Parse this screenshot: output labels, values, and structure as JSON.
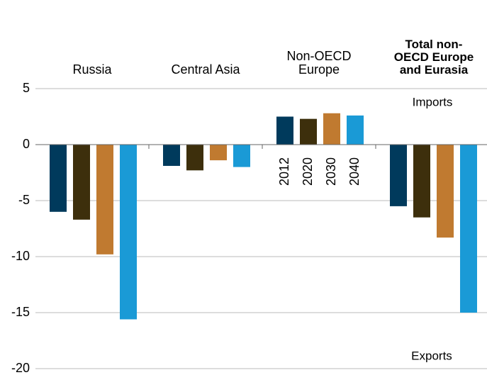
{
  "chart_data": {
    "type": "bar",
    "categories": [
      "Russia",
      "Central Asia",
      "Non-OECD Europe",
      "Total non-OECD Europe and Eurasia"
    ],
    "series": [
      {
        "name": "2012",
        "color": "#003a5c",
        "values": [
          -6.0,
          -1.9,
          2.5,
          -5.5
        ]
      },
      {
        "name": "2020",
        "color": "#3d2f0c",
        "values": [
          -6.7,
          -2.3,
          2.3,
          -6.5
        ]
      },
      {
        "name": "2030",
        "color": "#c07a30",
        "values": [
          -9.8,
          -1.4,
          2.8,
          -8.3
        ]
      },
      {
        "name": "2040",
        "color": "#1a9ad6",
        "values": [
          -15.6,
          -2.0,
          2.6,
          -15.0
        ]
      }
    ],
    "ylim": [
      -20,
      5
    ],
    "yticks": [
      5,
      0,
      -5,
      -10,
      -15,
      -20
    ],
    "grid": true,
    "annotations": [
      "Imports",
      "Exports"
    ]
  }
}
